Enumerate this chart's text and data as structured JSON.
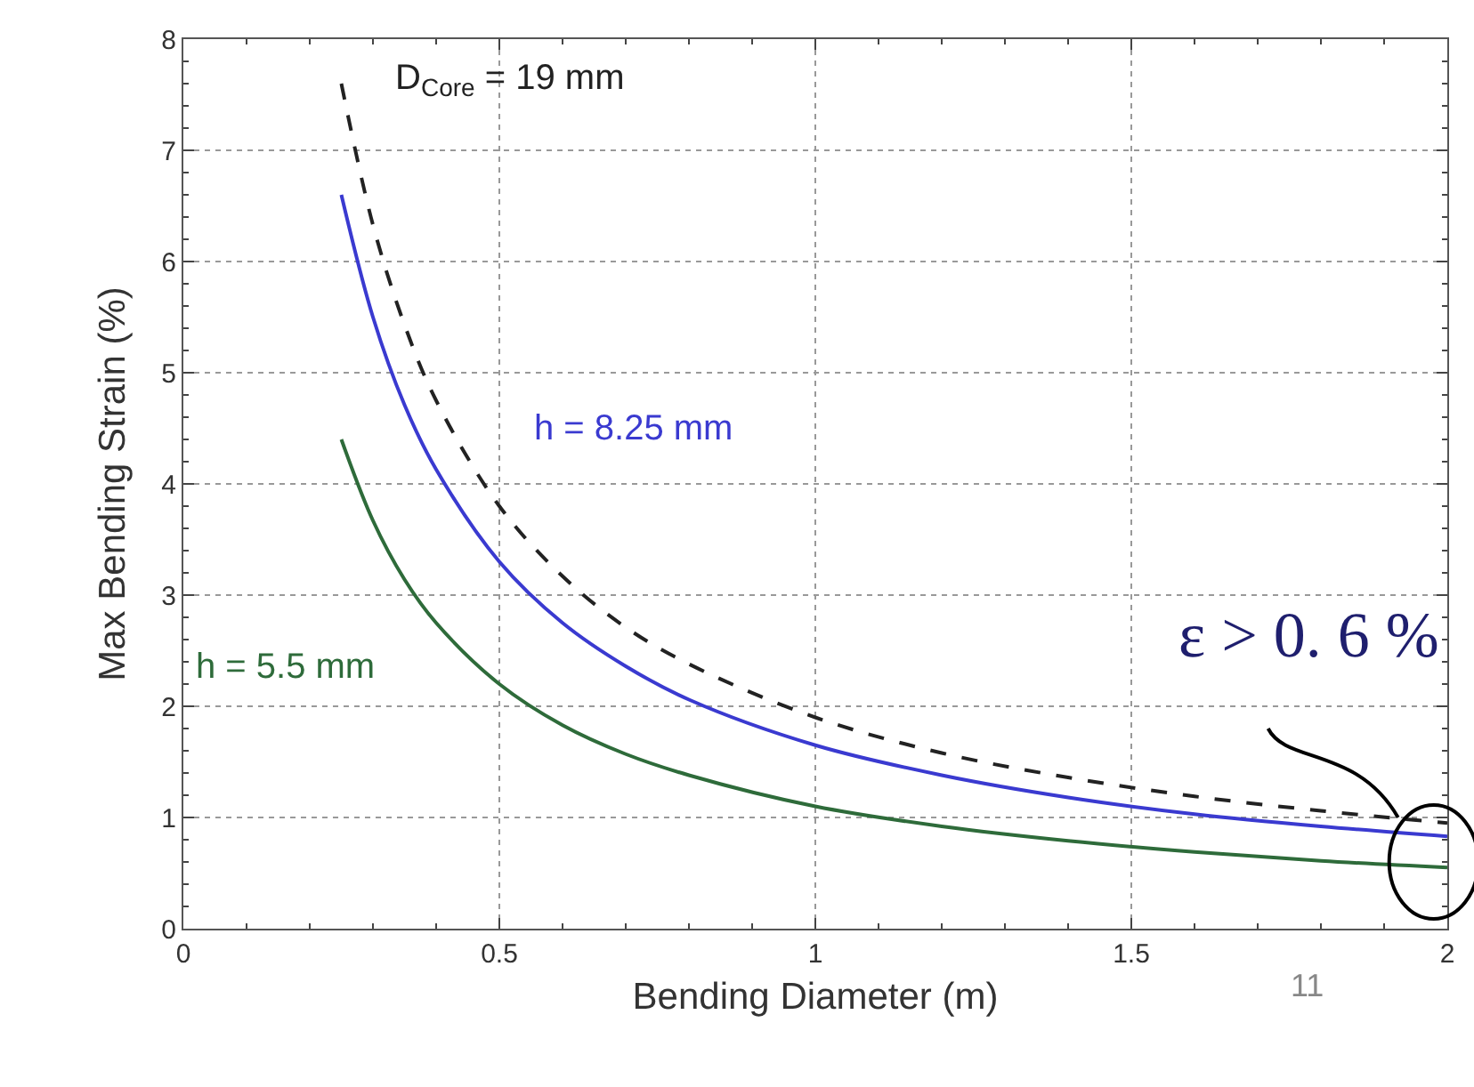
{
  "chart_data": {
    "type": "line",
    "xlabel": "Bending Diameter (m)",
    "ylabel": "Max Bending Strain (%)",
    "x": [
      0.25,
      0.3,
      0.35,
      0.4,
      0.5,
      0.6,
      0.7,
      0.8,
      1.0,
      1.2,
      1.4,
      1.6,
      1.8,
      2.0
    ],
    "series": [
      {
        "name": "D$_{Core}$ = 19 mm",
        "color": "#222222",
        "line_style": "dashed",
        "values": [
          7.6,
          6.33,
          5.43,
          4.75,
          3.8,
          3.17,
          2.71,
          2.38,
          1.9,
          1.58,
          1.36,
          1.19,
          1.06,
          0.95
        ]
      },
      {
        "name": "h = 8.25 mm",
        "color": "#3a3ad0",
        "line_style": "solid",
        "values": [
          6.6,
          5.5,
          4.71,
          4.13,
          3.3,
          2.75,
          2.36,
          2.06,
          1.65,
          1.38,
          1.18,
          1.03,
          0.92,
          0.83
        ]
      },
      {
        "name": "h = 5.5 mm",
        "color": "#2e6b3a",
        "line_style": "solid",
        "values": [
          4.4,
          3.67,
          3.14,
          2.75,
          2.2,
          1.83,
          1.57,
          1.38,
          1.1,
          0.92,
          0.79,
          0.69,
          0.61,
          0.55
        ]
      }
    ],
    "xlim": [
      0,
      2
    ],
    "xticks": [
      0,
      0.5,
      1,
      1.5,
      2
    ],
    "ylim": [
      0,
      8
    ],
    "yticks": [
      0,
      1,
      2,
      3,
      4,
      5,
      6,
      7,
      8
    ],
    "grid": true,
    "legend": false,
    "marker": "none",
    "annotations": [
      {
        "text": "ε > 0. 6 %",
        "x": 1.97,
        "y": 0.6
      },
      "11"
    ]
  }
}
